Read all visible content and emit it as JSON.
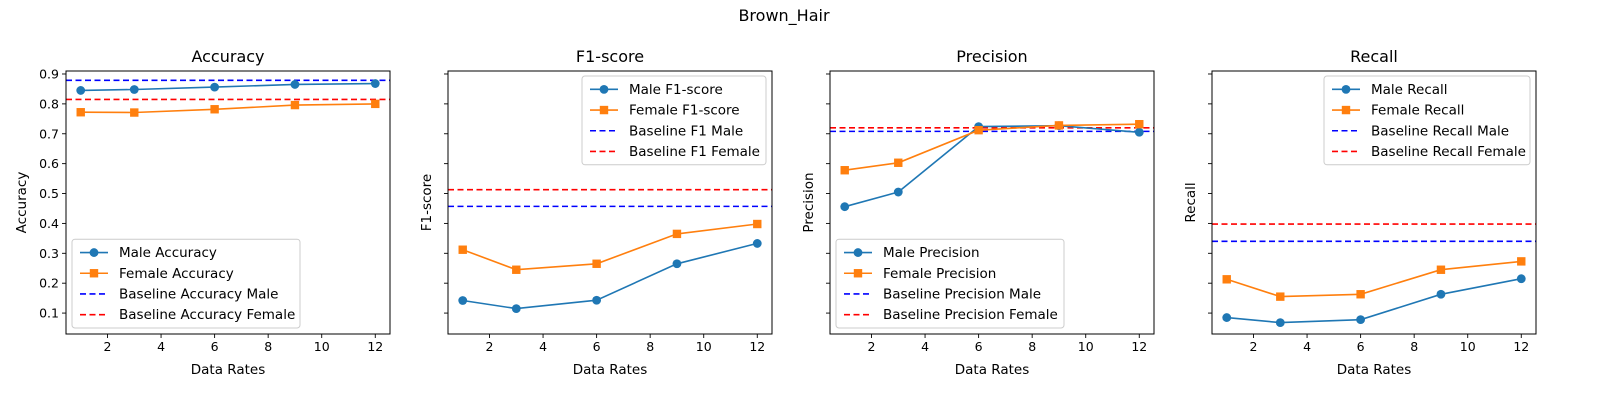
{
  "figure": {
    "title": "Brown_Hair"
  },
  "chart_data": [
    {
      "type": "line",
      "title": "Accuracy",
      "xlabel": "Data Rates",
      "ylabel": "Accuracy",
      "xlim": [
        0.45,
        12.55
      ],
      "ylim": [
        0.03,
        0.91
      ],
      "xticks": [
        2,
        4,
        6,
        8,
        10,
        12
      ],
      "yticks": [
        0.1,
        0.2,
        0.3,
        0.4,
        0.5,
        0.6,
        0.7,
        0.8,
        0.9
      ],
      "show_ytick_labels": true,
      "legend_position": "lower-left",
      "series": [
        {
          "name": "Male Accuracy",
          "color": "#1f77b4",
          "marker": "circle",
          "x": [
            1,
            3,
            6,
            9,
            12
          ],
          "y": [
            0.845,
            0.848,
            0.856,
            0.865,
            0.868
          ]
        },
        {
          "name": "Female Accuracy",
          "color": "#ff7f0e",
          "marker": "square",
          "x": [
            1,
            3,
            6,
            9,
            12
          ],
          "y": [
            0.772,
            0.771,
            0.782,
            0.796,
            0.8
          ]
        }
      ],
      "baselines": [
        {
          "name": "Baseline Accuracy Male",
          "color": "#0000ff",
          "y": 0.879
        },
        {
          "name": "Baseline Accuracy Female",
          "color": "#ff0000",
          "y": 0.815
        }
      ]
    },
    {
      "type": "line",
      "title": "F1-score",
      "xlabel": "Data Rates",
      "ylabel": "F1-score",
      "xlim": [
        0.45,
        12.55
      ],
      "ylim": [
        0.03,
        0.91
      ],
      "xticks": [
        2,
        4,
        6,
        8,
        10,
        12
      ],
      "yticks": [
        0.1,
        0.2,
        0.3,
        0.4,
        0.5,
        0.6,
        0.7,
        0.8,
        0.9
      ],
      "show_ytick_labels": false,
      "legend_position": "upper-right",
      "series": [
        {
          "name": "Male F1-score",
          "color": "#1f77b4",
          "marker": "circle",
          "x": [
            1,
            3,
            6,
            9,
            12
          ],
          "y": [
            0.142,
            0.115,
            0.143,
            0.265,
            0.333
          ]
        },
        {
          "name": "Female F1-score",
          "color": "#ff7f0e",
          "marker": "square",
          "x": [
            1,
            3,
            6,
            9,
            12
          ],
          "y": [
            0.312,
            0.245,
            0.265,
            0.365,
            0.398
          ]
        }
      ],
      "baselines": [
        {
          "name": "Baseline F1 Male",
          "color": "#0000ff",
          "y": 0.457
        },
        {
          "name": "Baseline F1 Female",
          "color": "#ff0000",
          "y": 0.513
        }
      ]
    },
    {
      "type": "line",
      "title": "Precision",
      "xlabel": "Data Rates",
      "ylabel": "Precision",
      "xlim": [
        0.45,
        12.55
      ],
      "ylim": [
        0.03,
        0.91
      ],
      "xticks": [
        2,
        4,
        6,
        8,
        10,
        12
      ],
      "yticks": [
        0.1,
        0.2,
        0.3,
        0.4,
        0.5,
        0.6,
        0.7,
        0.8,
        0.9
      ],
      "show_ytick_labels": false,
      "legend_position": "lower-left",
      "series": [
        {
          "name": "Male Precision",
          "color": "#1f77b4",
          "marker": "circle",
          "x": [
            1,
            3,
            6,
            9,
            12
          ],
          "y": [
            0.456,
            0.505,
            0.724,
            0.727,
            0.705
          ]
        },
        {
          "name": "Female Precision",
          "color": "#ff7f0e",
          "marker": "square",
          "x": [
            1,
            3,
            6,
            9,
            12
          ],
          "y": [
            0.578,
            0.603,
            0.712,
            0.728,
            0.732
          ]
        }
      ],
      "baselines": [
        {
          "name": "Baseline Precision Male",
          "color": "#0000ff",
          "y": 0.708
        },
        {
          "name": "Baseline Precision Female",
          "color": "#ff0000",
          "y": 0.72
        }
      ]
    },
    {
      "type": "line",
      "title": "Recall",
      "xlabel": "Data Rates",
      "ylabel": "Recall",
      "xlim": [
        0.45,
        12.55
      ],
      "ylim": [
        0.03,
        0.91
      ],
      "xticks": [
        2,
        4,
        6,
        8,
        10,
        12
      ],
      "yticks": [
        0.1,
        0.2,
        0.3,
        0.4,
        0.5,
        0.6,
        0.7,
        0.8,
        0.9
      ],
      "show_ytick_labels": false,
      "legend_position": "upper-right",
      "series": [
        {
          "name": "Male Recall",
          "color": "#1f77b4",
          "marker": "circle",
          "x": [
            1,
            3,
            6,
            9,
            12
          ],
          "y": [
            0.085,
            0.068,
            0.078,
            0.163,
            0.215
          ]
        },
        {
          "name": "Female Recall",
          "color": "#ff7f0e",
          "marker": "square",
          "x": [
            1,
            3,
            6,
            9,
            12
          ],
          "y": [
            0.213,
            0.155,
            0.163,
            0.245,
            0.273
          ]
        }
      ],
      "baselines": [
        {
          "name": "Baseline Recall Male",
          "color": "#0000ff",
          "y": 0.34
        },
        {
          "name": "Baseline Recall Female",
          "color": "#ff0000",
          "y": 0.398
        }
      ]
    }
  ]
}
